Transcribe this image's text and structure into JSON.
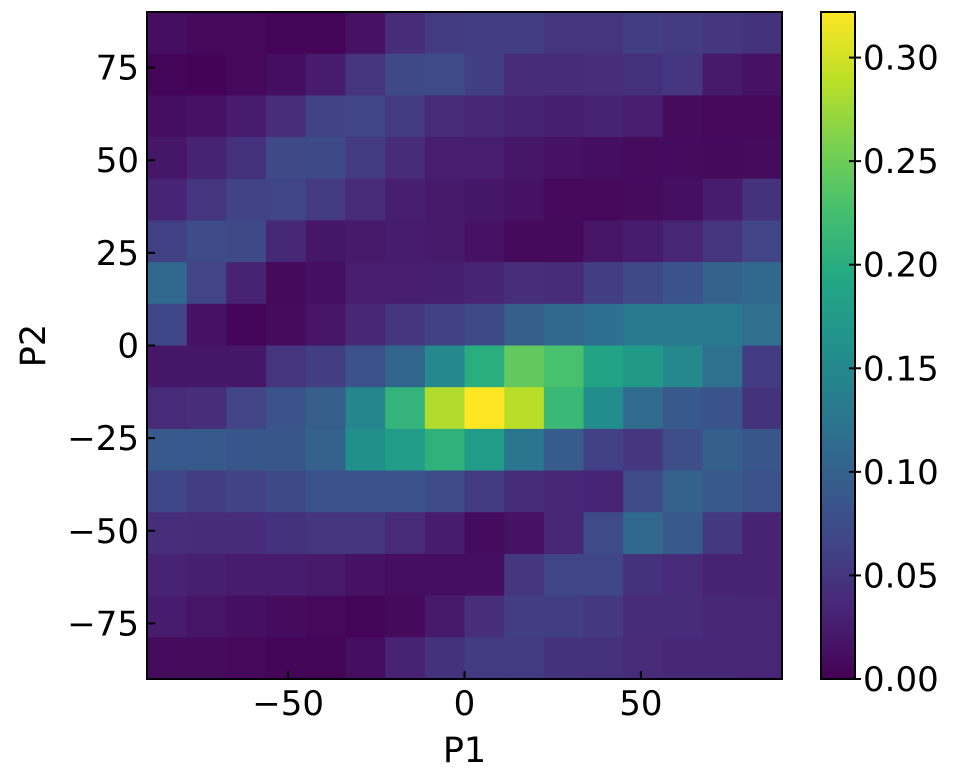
{
  "chart_data": {
    "type": "heatmap",
    "title": "",
    "xlabel": "P1",
    "ylabel": "P2",
    "xlim": [
      -90,
      90
    ],
    "ylim": [
      -90,
      90
    ],
    "x_bin_edges": [
      -90,
      -78.75,
      -67.5,
      -56.25,
      -45,
      -33.75,
      -22.5,
      -11.25,
      0,
      11.25,
      22.5,
      33.75,
      45,
      56.25,
      67.5,
      78.75,
      90
    ],
    "y_bin_edges": [
      90,
      78.75,
      67.5,
      56.25,
      45,
      33.75,
      22.5,
      11.25,
      0,
      -11.25,
      -22.5,
      -33.75,
      -45,
      -56.25,
      -67.5,
      -78.75,
      -90
    ],
    "x_ticks": [
      -50,
      0,
      50
    ],
    "x_tick_labels": [
      "−50",
      "0",
      "50"
    ],
    "y_ticks": [
      75,
      50,
      25,
      0,
      -25,
      -50,
      -75
    ],
    "y_tick_labels": [
      "75",
      "50",
      "25",
      "0",
      "−25",
      "−50",
      "−75"
    ],
    "values": [
      [
        0.012,
        0.006,
        0.006,
        0.004,
        0.004,
        0.016,
        0.04,
        0.055,
        0.058,
        0.058,
        0.048,
        0.048,
        0.058,
        0.054,
        0.05,
        0.046
      ],
      [
        0.004,
        0.002,
        0.006,
        0.012,
        0.024,
        0.048,
        0.07,
        0.074,
        0.058,
        0.04,
        0.04,
        0.042,
        0.044,
        0.05,
        0.022,
        0.016
      ],
      [
        0.012,
        0.016,
        0.024,
        0.042,
        0.062,
        0.066,
        0.054,
        0.038,
        0.036,
        0.03,
        0.028,
        0.03,
        0.026,
        0.01,
        0.006,
        0.006
      ],
      [
        0.02,
        0.03,
        0.044,
        0.07,
        0.072,
        0.054,
        0.04,
        0.026,
        0.026,
        0.02,
        0.016,
        0.012,
        0.01,
        0.01,
        0.008,
        0.01
      ],
      [
        0.032,
        0.048,
        0.062,
        0.066,
        0.054,
        0.038,
        0.028,
        0.022,
        0.02,
        0.016,
        0.006,
        0.006,
        0.01,
        0.014,
        0.024,
        0.046
      ],
      [
        0.06,
        0.074,
        0.07,
        0.036,
        0.02,
        0.022,
        0.024,
        0.022,
        0.016,
        0.008,
        0.008,
        0.018,
        0.024,
        0.034,
        0.048,
        0.064
      ],
      [
        0.108,
        0.064,
        0.03,
        0.008,
        0.014,
        0.026,
        0.026,
        0.028,
        0.032,
        0.042,
        0.04,
        0.058,
        0.07,
        0.084,
        0.1,
        0.108
      ],
      [
        0.068,
        0.016,
        0.004,
        0.01,
        0.018,
        0.036,
        0.05,
        0.06,
        0.072,
        0.096,
        0.11,
        0.116,
        0.132,
        0.132,
        0.132,
        0.118
      ],
      [
        0.02,
        0.02,
        0.02,
        0.048,
        0.058,
        0.08,
        0.104,
        0.15,
        0.202,
        0.244,
        0.228,
        0.186,
        0.172,
        0.15,
        0.118,
        0.056
      ],
      [
        0.038,
        0.042,
        0.064,
        0.082,
        0.096,
        0.146,
        0.21,
        0.284,
        0.322,
        0.288,
        0.216,
        0.154,
        0.112,
        0.09,
        0.082,
        0.046
      ],
      [
        0.09,
        0.09,
        0.086,
        0.086,
        0.1,
        0.16,
        0.176,
        0.206,
        0.176,
        0.126,
        0.092,
        0.06,
        0.05,
        0.076,
        0.098,
        0.086
      ],
      [
        0.068,
        0.058,
        0.062,
        0.072,
        0.08,
        0.08,
        0.084,
        0.074,
        0.056,
        0.04,
        0.034,
        0.032,
        0.074,
        0.1,
        0.09,
        0.08
      ],
      [
        0.042,
        0.04,
        0.04,
        0.044,
        0.048,
        0.048,
        0.038,
        0.024,
        0.01,
        0.016,
        0.034,
        0.074,
        0.108,
        0.09,
        0.052,
        0.03
      ],
      [
        0.03,
        0.028,
        0.024,
        0.024,
        0.022,
        0.016,
        0.012,
        0.012,
        0.012,
        0.05,
        0.066,
        0.066,
        0.044,
        0.04,
        0.03,
        0.03
      ],
      [
        0.024,
        0.018,
        0.014,
        0.01,
        0.006,
        0.004,
        0.008,
        0.022,
        0.042,
        0.058,
        0.058,
        0.052,
        0.04,
        0.04,
        0.036,
        0.034
      ],
      [
        0.01,
        0.01,
        0.006,
        0.004,
        0.004,
        0.012,
        0.03,
        0.046,
        0.054,
        0.054,
        0.046,
        0.044,
        0.038,
        0.036,
        0.036,
        0.034
      ]
    ],
    "colormap": "viridis",
    "colorbar": {
      "min": 0,
      "max": 0.322,
      "ticks": [
        0.0,
        0.05,
        0.1,
        0.15,
        0.2,
        0.25,
        0.3
      ],
      "tick_labels": [
        "0.00",
        "0.05",
        "0.10",
        "0.15",
        "0.20",
        "0.25",
        "0.30"
      ]
    }
  }
}
